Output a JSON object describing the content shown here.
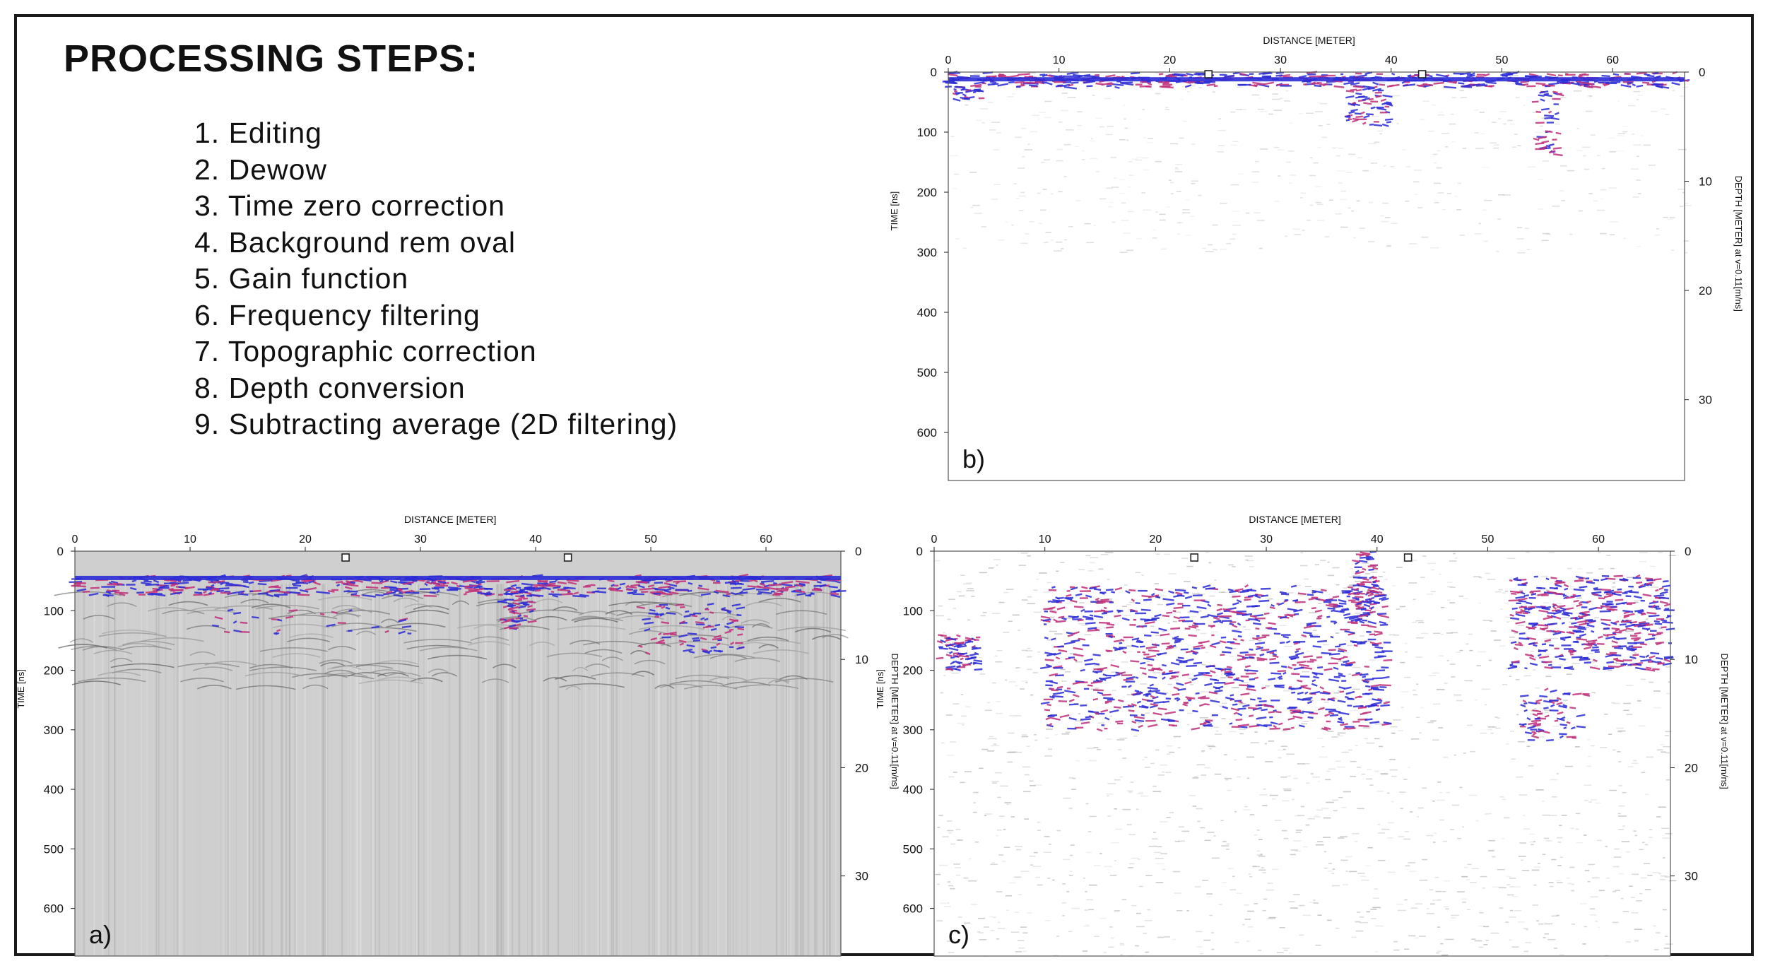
{
  "processing": {
    "title": "PROCESSING STEPS:",
    "steps": [
      "1. Editing",
      "2. Dewow",
      "3. Time zero correction",
      "4. Background rem oval",
      "5. Gain function",
      "6. Frequency filtering",
      "7. Topographic correction",
      "8. Depth conversion",
      "9. Subtracting average (2D filtering)"
    ]
  },
  "colors": {
    "frame": "#1a1a1a",
    "primary_signal": "#2b2bd6",
    "secondary_signal": "#c0307a",
    "raw_background": "#cfcfcf",
    "processed_background": "#ffffff"
  },
  "chart_data": [
    {
      "type": "heatmap",
      "panel_label": "b)",
      "description_kind": "processed radargram",
      "xlabel": "DISTANCE [METER]",
      "ylabel": "TIME [ns]",
      "y2label": "DEPTH [METER] at v=0.11[m/ns]",
      "xlim": [
        0,
        66.5
      ],
      "ylim": [
        0,
        680
      ],
      "y2lim": [
        0,
        37.4
      ],
      "xticks": [
        0,
        10,
        20,
        30,
        40,
        50,
        60
      ],
      "yticks": [
        0,
        100,
        200,
        300,
        400,
        500,
        600
      ],
      "y2ticks": [
        0,
        10,
        20,
        30
      ],
      "markers_x": [
        23.5,
        42.8
      ],
      "ground_surface_time": 12,
      "background": "white"
    },
    {
      "type": "heatmap",
      "panel_label": "a)",
      "description_kind": "raw radargram",
      "xlabel": "DISTANCE [METER]",
      "ylabel": "TIME [ns]",
      "y2label": "DEPTH [METER] at v=0.11[m/ns]",
      "xlim": [
        0,
        66.5
      ],
      "ylim": [
        0,
        680
      ],
      "y2lim": [
        0,
        37.4
      ],
      "xticks": [
        0,
        10,
        20,
        30,
        40,
        50,
        60
      ],
      "yticks": [
        0,
        100,
        200,
        300,
        400,
        500,
        600
      ],
      "y2ticks": [
        0,
        10,
        20,
        30
      ],
      "markers_x": [
        23.5,
        42.8
      ],
      "ground_surface_time": 45,
      "background": "grey"
    },
    {
      "type": "heatmap",
      "panel_label": "c)",
      "description_kind": "filtered radargram",
      "xlabel": "DISTANCE [METER]",
      "ylabel": "TIME [ns]",
      "y2label": "DEPTH [METER] at v=0.11[m/ns]",
      "xlim": [
        0,
        66.5
      ],
      "ylim": [
        0,
        680
      ],
      "y2lim": [
        0,
        37.4
      ],
      "xticks": [
        0,
        10,
        20,
        30,
        40,
        50,
        60
      ],
      "yticks": [
        0,
        100,
        200,
        300,
        400,
        500,
        600
      ],
      "y2ticks": [
        0,
        10,
        20,
        30
      ],
      "markers_x": [
        23.5,
        42.8
      ],
      "ground_surface_time": 0,
      "background": "white"
    }
  ]
}
